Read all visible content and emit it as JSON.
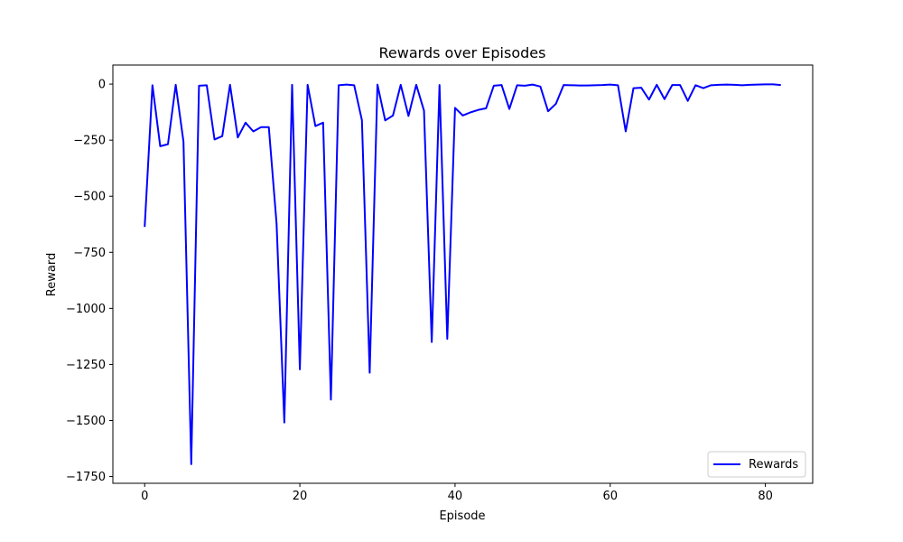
{
  "chart_data": {
    "type": "line",
    "title": "Rewards over Episodes",
    "xlabel": "Episode",
    "ylabel": "Reward",
    "xlim": [
      -4.1,
      86.1
    ],
    "ylim": [
      -1780,
      85
    ],
    "xticks": [
      0,
      20,
      40,
      60,
      80
    ],
    "yticks": [
      0,
      -250,
      -500,
      -750,
      -1000,
      -1250,
      -1500,
      -1750
    ],
    "grid": false,
    "legend_position": "lower right",
    "series": [
      {
        "name": "Rewards",
        "color": "#0000ff",
        "x": [
          0,
          1,
          2,
          3,
          4,
          5,
          6,
          7,
          8,
          9,
          10,
          11,
          12,
          13,
          14,
          15,
          16,
          17,
          18,
          19,
          20,
          21,
          22,
          23,
          24,
          25,
          26,
          27,
          28,
          29,
          30,
          31,
          32,
          33,
          34,
          35,
          36,
          37,
          38,
          39,
          40,
          41,
          42,
          43,
          44,
          45,
          46,
          47,
          48,
          49,
          50,
          51,
          52,
          53,
          54,
          55,
          56,
          57,
          58,
          59,
          60,
          61,
          62,
          63,
          64,
          65,
          66,
          67,
          68,
          69,
          70,
          71,
          72,
          73,
          74,
          75,
          76,
          77,
          78,
          79,
          80,
          81,
          82
        ],
        "values": [
          -637,
          -5,
          -277,
          -268,
          -3,
          -257,
          -1695,
          -7,
          -5,
          -247,
          -232,
          -3,
          -238,
          -172,
          -211,
          -192,
          -192,
          -622,
          -1509,
          -3,
          -1272,
          -3,
          -187,
          -172,
          -1407,
          -5,
          -2,
          -5,
          -161,
          -1287,
          -2,
          -162,
          -140,
          -3,
          -142,
          -3,
          -118,
          -1150,
          -4,
          -1136,
          -106,
          -140,
          -126,
          -115,
          -108,
          -7,
          -4,
          -111,
          -5,
          -7,
          -2,
          -11,
          -121,
          -88,
          -4,
          -5,
          -6,
          -6,
          -5,
          -4,
          -2,
          -5,
          -211,
          -18,
          -16,
          -69,
          -3,
          -67,
          -4,
          -4,
          -75,
          -5,
          -18,
          -5,
          -3,
          -2,
          -3,
          -5,
          -3,
          -2,
          -1,
          -1,
          -4
        ]
      }
    ]
  }
}
